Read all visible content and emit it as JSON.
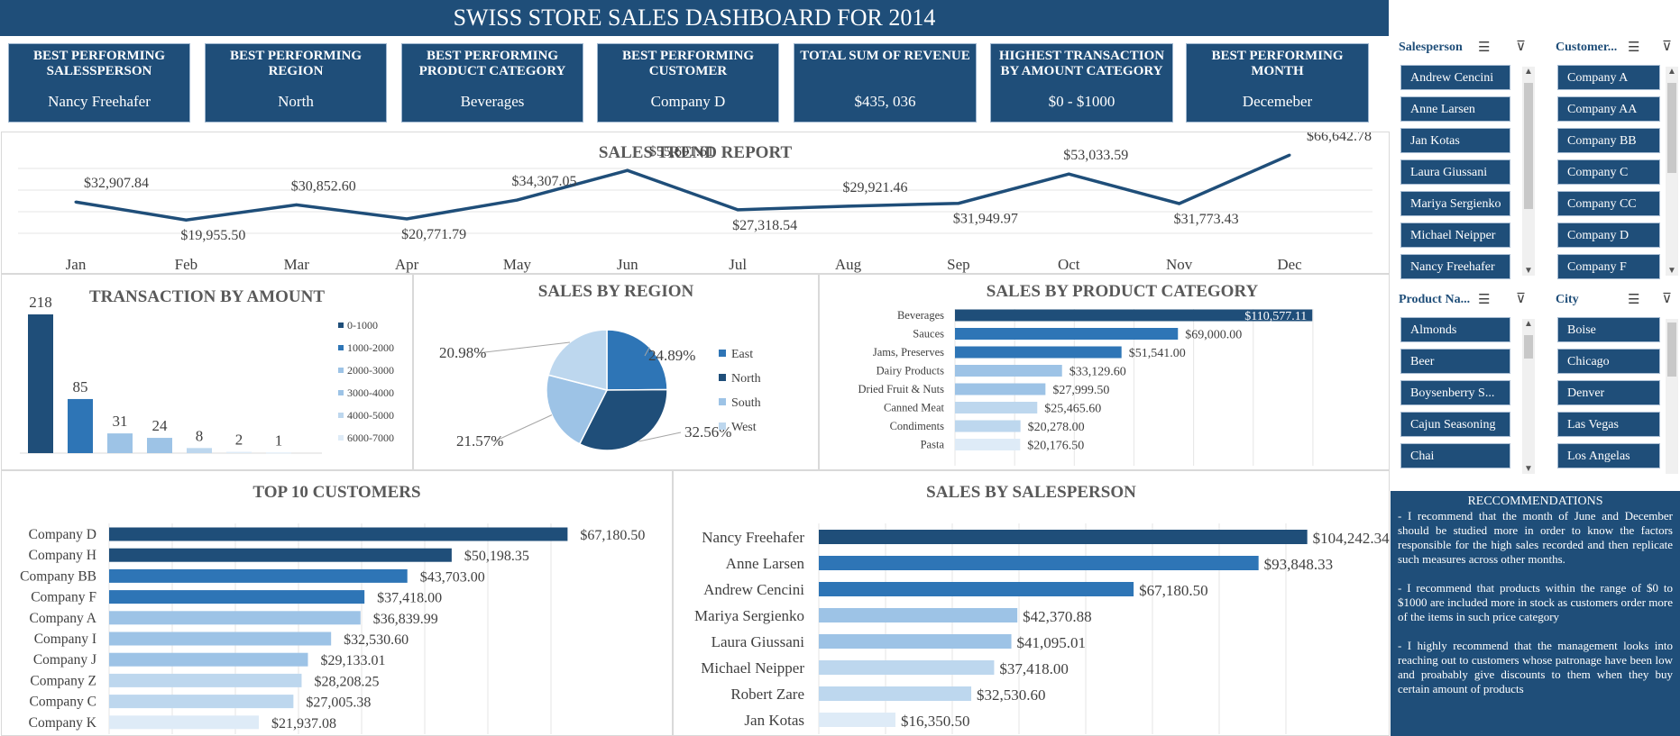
{
  "title": "SWISS STORE SALES DASHBOARD FOR 2014",
  "kpis": [
    {
      "label": "BEST PERFORMING SALESSPERSON",
      "value": "Nancy Freehafer"
    },
    {
      "label": "BEST PERFORMING REGION",
      "value": "North"
    },
    {
      "label": "BEST PERFORMING PRODUCT CATEGORY",
      "value": "Beverages"
    },
    {
      "label": "BEST PERFORMING CUSTOMER",
      "value": "Company D"
    },
    {
      "label": "TOTAL SUM OF REVENUE",
      "value": "$435, 036"
    },
    {
      "label": "HIGHEST TRANSACTION BY AMOUNT CATEGORY",
      "value": "$0 - $1000"
    },
    {
      "label": "BEST PERFORMING MONTH",
      "value": "Decemeber"
    }
  ],
  "slicers": {
    "salesperson": {
      "title": "Salesperson",
      "items": [
        "Andrew Cencini",
        "Anne Larsen",
        "Jan Kotas",
        "Laura Giussani",
        "Mariya Sergienko",
        "Michael Neipper",
        "Nancy Freehafer"
      ]
    },
    "customer": {
      "title": "Customer...",
      "items": [
        "Company A",
        "Company AA",
        "Company BB",
        "Company C",
        "Company CC",
        "Company D",
        "Company F"
      ]
    },
    "product": {
      "title": "Product Na...",
      "items": [
        "Almonds",
        "Beer",
        "Boysenberry S...",
        "Cajun Seasoning",
        "Chai"
      ]
    },
    "city": {
      "title": "City",
      "items": [
        "Boise",
        "Chicago",
        "Denver",
        "Las Vegas",
        "Los Angelas"
      ]
    }
  },
  "icons": {
    "multiselect": "multi-select-icon",
    "clearfilter": "clear-filter-icon"
  },
  "colors": {
    "navy": "#1f4e79",
    "mid": "#2e75b6",
    "light": "#9dc3e6",
    "lighter": "#bdd7ee",
    "lightest": "#deebf7"
  },
  "recommendations": {
    "title": "RECCOMMENDATIONS",
    "items": [
      "- I recommend that the month of June and December should be studied more in order to know the factors responsible for the high sales recorded and then replicate such measures across other months.",
      "- I recommend that products within the range of $0 to $1000 are included more in stock as customers order more of the items in such price category",
      "- I highly recommend that the management looks into reaching out to customers whose patronage have been low and proabably give discounts to them when they buy certain amount of products"
    ]
  },
  "chart_data": [
    {
      "id": "trend",
      "type": "line",
      "title": "SALES TREND REPORT",
      "categories": [
        "Jan",
        "Feb",
        "Mar",
        "Apr",
        "May",
        "Jun",
        "Jul",
        "Aug",
        "Sep",
        "Oct",
        "Nov",
        "Dec"
      ],
      "values": [
        32907.84,
        19955.5,
        30852.6,
        20771.79,
        34307.05,
        55601.61,
        27318.54,
        29921.46,
        31949.97,
        53033.59,
        31773.43,
        66642.78
      ],
      "labels": [
        "$32,907.84",
        "$19,955.50",
        "$30,852.60",
        "$20,771.79",
        "$34,307.05",
        "$55,601.61",
        "$27,318.54",
        "$29,921.46",
        "$31,949.97",
        "$53,033.59",
        "$31,773.43",
        "$66,642.78"
      ],
      "grid": true
    },
    {
      "id": "amount",
      "type": "bar",
      "title": "TRANSACTION BY AMOUNT",
      "categories": [
        "0-1000",
        "1000-2000",
        "2000-3000",
        "3000-4000",
        "4000-5000",
        "6000-7000",
        ""
      ],
      "values": [
        218,
        85,
        31,
        24,
        8,
        2,
        1
      ],
      "legend": [
        "0-1000",
        "1000-2000",
        "2000-3000",
        "3000-4000",
        "4000-5000",
        "6000-7000"
      ],
      "legend_position": "right"
    },
    {
      "id": "region",
      "type": "pie",
      "title": "SALES BY REGION",
      "categories": [
        "East",
        "North",
        "South",
        "West"
      ],
      "values": [
        24.89,
        32.56,
        21.57,
        20.98
      ],
      "labels": [
        "24.89%",
        "32.56%",
        "21.57%",
        "20.98%"
      ],
      "legend_position": "right"
    },
    {
      "id": "category",
      "type": "bar",
      "orientation": "horizontal",
      "title": "SALES BY PRODUCT CATEGORY",
      "categories": [
        "Beverages",
        "Sauces",
        "Jams, Preserves",
        "Dairy Products",
        "Dried Fruit & Nuts",
        "Canned Meat",
        "Condiments",
        "Pasta"
      ],
      "values": [
        110577.11,
        69000.0,
        51541.0,
        33129.6,
        27999.5,
        25465.6,
        20278.0,
        20176.5
      ],
      "labels": [
        "$110,577.11",
        "$69,000.00",
        "$51,541.00",
        "$33,129.60",
        "$27,999.50",
        "$25,465.60",
        "$20,278.00",
        "$20,176.50"
      ]
    },
    {
      "id": "customers",
      "type": "bar",
      "orientation": "horizontal",
      "title": "TOP 10 CUSTOMERS",
      "categories": [
        "Company D",
        "Company H",
        "Company BB",
        "Company F",
        "Company A",
        "Company I",
        "Company J",
        "Company Z",
        "Company C",
        "Company K"
      ],
      "values": [
        67180.5,
        50198.35,
        43703.0,
        37418.0,
        36839.99,
        32530.6,
        29133.01,
        28208.25,
        27005.38,
        21937.08
      ],
      "labels": [
        "$67,180.50",
        "$50,198.35",
        "$43,703.00",
        "$37,418.00",
        "$36,839.99",
        "$32,530.60",
        "$29,133.01",
        "$28,208.25",
        "$27,005.38",
        "$21,937.08"
      ]
    },
    {
      "id": "salesperson",
      "type": "bar",
      "orientation": "horizontal",
      "title": "SALES BY SALESPERSON",
      "categories": [
        "Nancy Freehafer",
        "Anne Larsen",
        "Andrew Cencini",
        "Mariya Sergienko",
        "Laura Giussani",
        "Michael Neipper",
        "Robert Zare",
        "Jan Kotas"
      ],
      "values": [
        104242.34,
        93848.33,
        67180.5,
        42370.88,
        41095.01,
        37418.0,
        32530.6,
        16350.5
      ],
      "labels": [
        "$104,242.34",
        "$93,848.33",
        "$67,180.50",
        "$42,370.88",
        "$41,095.01",
        "$37,418.00",
        "$32,530.60",
        "$16,350.50"
      ]
    }
  ]
}
